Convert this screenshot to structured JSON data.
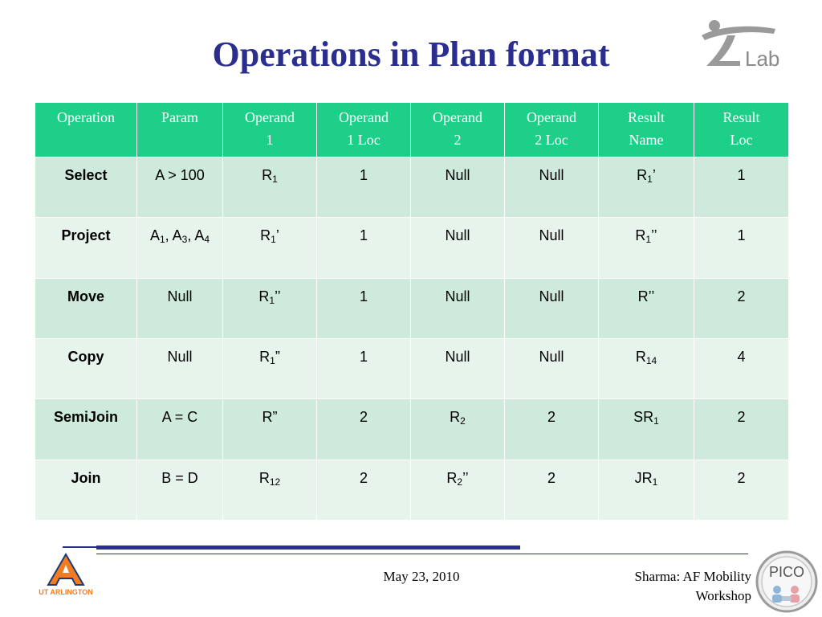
{
  "slide": {
    "title": "Operations in Plan format",
    "logos": {
      "ilab_text": "Lab",
      "ut_text": "UT ARLINGTON",
      "pico_text": "PICO"
    },
    "footer": {
      "date": "May 23, 2010",
      "credit_line1": "Sharma: AF Mobility",
      "credit_line2": "Workshop"
    },
    "colors": {
      "title": "#2a2f8f",
      "header_bg": "#1ecf8a",
      "row_dark": "#cdeadb",
      "row_light": "#e7f4ec"
    }
  },
  "table": {
    "headers": [
      [
        "Operation"
      ],
      [
        "Param"
      ],
      [
        "Operand",
        "1"
      ],
      [
        "Operand",
        "1 Loc"
      ],
      [
        "Operand",
        "2"
      ],
      [
        "Operand",
        "2 Loc"
      ],
      [
        "Result",
        "Name"
      ],
      [
        "Result",
        "Loc"
      ]
    ],
    "rows": [
      {
        "operation": "Select",
        "param": [
          [
            "A > 100",
            ""
          ]
        ],
        "operand1": [
          [
            "R",
            "1"
          ]
        ],
        "operand1_loc": "1",
        "operand2": [
          [
            "Null",
            ""
          ]
        ],
        "operand2_loc": "Null",
        "result_name": [
          [
            "R",
            "1"
          ],
          [
            "’",
            ""
          ]
        ],
        "result_loc": "1"
      },
      {
        "operation": "Project",
        "param": [
          [
            "A",
            "1"
          ],
          [
            ", A",
            "3"
          ],
          [
            ", A",
            "4"
          ]
        ],
        "operand1": [
          [
            "R",
            "1"
          ],
          [
            "’",
            ""
          ]
        ],
        "operand1_loc": "1",
        "operand2": [
          [
            "Null",
            ""
          ]
        ],
        "operand2_loc": "Null",
        "result_name": [
          [
            "R",
            "1"
          ],
          [
            "’’",
            ""
          ]
        ],
        "result_loc": "1"
      },
      {
        "operation": "Move",
        "param": [
          [
            "Null",
            ""
          ]
        ],
        "operand1": [
          [
            "R",
            "1"
          ],
          [
            "’’",
            ""
          ]
        ],
        "operand1_loc": "1",
        "operand2": [
          [
            "Null",
            ""
          ]
        ],
        "operand2_loc": "Null",
        "result_name": [
          [
            "R’’",
            ""
          ]
        ],
        "result_loc": "2"
      },
      {
        "operation": "Copy",
        "param": [
          [
            "Null",
            ""
          ]
        ],
        "operand1": [
          [
            "R",
            "1"
          ],
          [
            "”",
            ""
          ]
        ],
        "operand1_loc": "1",
        "operand2": [
          [
            "Null",
            ""
          ]
        ],
        "operand2_loc": "Null",
        "result_name": [
          [
            "R",
            "14"
          ]
        ],
        "result_loc": "4"
      },
      {
        "operation": "SemiJoin",
        "param": [
          [
            "A = C",
            ""
          ]
        ],
        "operand1": [
          [
            "R”",
            ""
          ]
        ],
        "operand1_loc": "2",
        "operand2": [
          [
            "R",
            "2"
          ]
        ],
        "operand2_loc": "2",
        "result_name": [
          [
            "SR",
            "1"
          ]
        ],
        "result_loc": "2"
      },
      {
        "operation": "Join",
        "param": [
          [
            "B = D",
            ""
          ]
        ],
        "operand1": [
          [
            "R",
            "12"
          ]
        ],
        "operand1_loc": "2",
        "operand2": [
          [
            "R",
            "2"
          ],
          [
            "’’",
            ""
          ]
        ],
        "operand2_loc": "2",
        "result_name": [
          [
            "JR",
            "1"
          ]
        ],
        "result_loc": "2"
      }
    ]
  }
}
